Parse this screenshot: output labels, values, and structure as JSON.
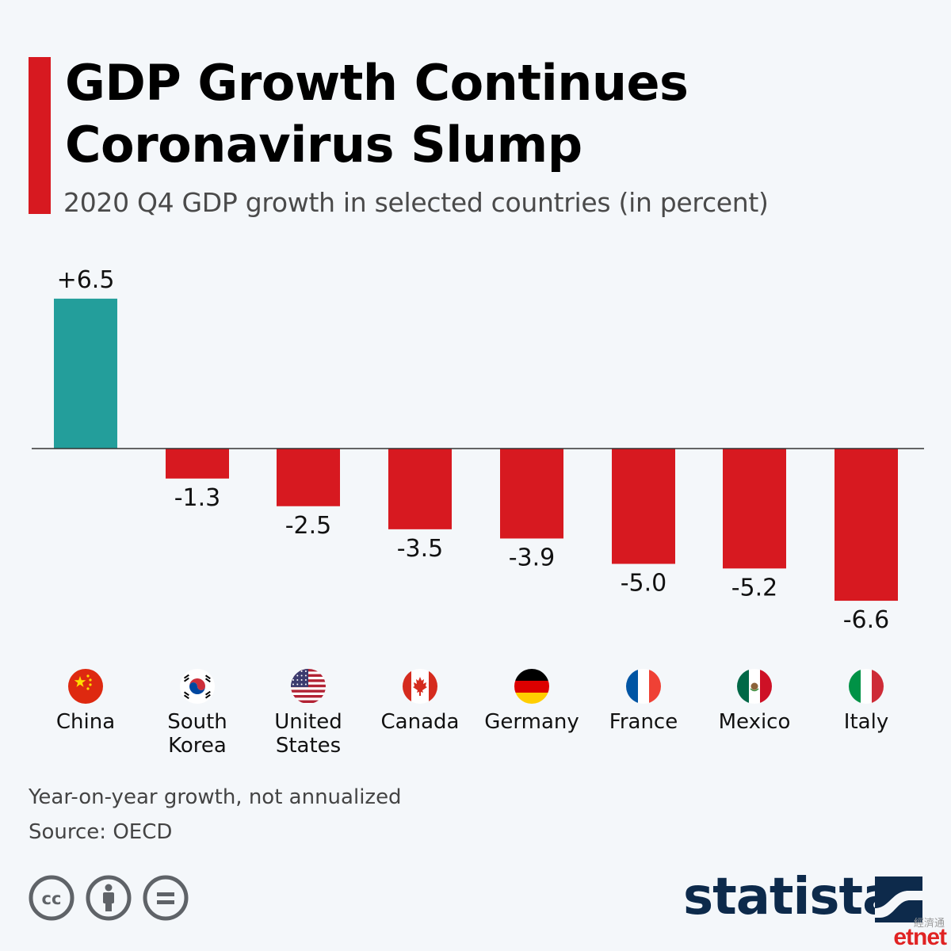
{
  "header": {
    "title": "GDP Growth Continues Coronavirus Slump",
    "subtitle": "2020 Q4 GDP growth in selected countries (in percent)"
  },
  "chart_data": {
    "type": "bar",
    "title": "GDP Growth Continues Coronavirus Slump",
    "subtitle": "2020 Q4 GDP growth in selected countries (in percent)",
    "categories": [
      "China",
      "South Korea",
      "United States",
      "Canada",
      "Germany",
      "France",
      "Mexico",
      "Italy"
    ],
    "values": [
      6.5,
      -1.3,
      -2.5,
      -3.5,
      -3.9,
      -5.0,
      -5.2,
      -6.6
    ],
    "value_labels": [
      "+6.5",
      "-1.3",
      "-2.5",
      "-3.5",
      "-3.9",
      "-5.0",
      "-5.2",
      "-6.6"
    ],
    "xlabel": "",
    "ylabel": "",
    "ylim": [
      -6.6,
      6.5
    ],
    "grid": false,
    "legend": "none",
    "colors": {
      "positive": "#239e9b",
      "negative": "#d71920",
      "baseline": "#333333"
    }
  },
  "countries": [
    {
      "name": "China",
      "flag": "china-flag-icon"
    },
    {
      "name": "South\nKorea",
      "flag": "south-korea-flag-icon"
    },
    {
      "name": "United\nStates",
      "flag": "united-states-flag-icon"
    },
    {
      "name": "Canada",
      "flag": "canada-flag-icon"
    },
    {
      "name": "Germany",
      "flag": "germany-flag-icon"
    },
    {
      "name": "France",
      "flag": "france-flag-icon"
    },
    {
      "name": "Mexico",
      "flag": "mexico-flag-icon"
    },
    {
      "name": "Italy",
      "flag": "italy-flag-icon"
    }
  ],
  "footer": {
    "note": "Year-on-year growth, not annualized",
    "source": "Source: OECD",
    "brand": "statista",
    "partner_cn": "經濟通",
    "partner": "etnet",
    "license_icons": [
      "creative-commons-icon",
      "attribution-icon",
      "no-derivatives-icon"
    ]
  },
  "colors": {
    "accent": "#d71920",
    "brand": "#0d2a4b",
    "background": "#f4f7fa"
  }
}
